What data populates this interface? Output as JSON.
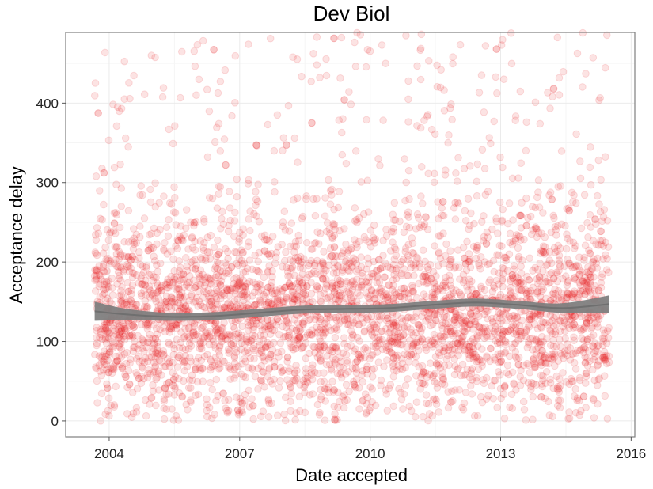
{
  "chart_data": {
    "type": "scatter",
    "title": "Dev Biol",
    "xlabel": "Date accepted",
    "ylabel": "Acceptance delay",
    "x_ticks": [
      "2004",
      "2007",
      "2010",
      "2013",
      "2016"
    ],
    "y_ticks": [
      "0",
      "100",
      "200",
      "300",
      "400"
    ],
    "xlim": [
      "2003-01-01",
      "2016-02-01"
    ],
    "ylim": [
      -20,
      489
    ],
    "grid": true,
    "legend": "none",
    "series": [
      {
        "kind": "points",
        "color": "#e8191b",
        "opacity": 0.12,
        "x_range": [
          "2003-09-01",
          "2015-06-30"
        ],
        "point_count": 4000,
        "y_range": [
          0,
          489
        ],
        "y_typical": [
          50,
          220
        ]
      },
      {
        "kind": "smooth",
        "color": "#7f7f7f",
        "x": [
          "2003-09-01",
          "2004-06-01",
          "2005-06-01",
          "2006-06-01",
          "2007-06-01",
          "2008-06-01",
          "2009-06-01",
          "2010-06-01",
          "2011-06-01",
          "2012-06-01",
          "2013-06-01",
          "2014-06-01",
          "2015-06-30"
        ],
        "y": [
          138,
          134,
          131,
          132,
          136,
          140,
          141,
          142,
          146,
          149,
          146,
          142,
          147
        ],
        "ci_halfwidth": [
          12,
          7,
          5,
          5,
          5,
          5,
          5,
          5,
          5,
          5,
          5,
          6,
          11
        ]
      }
    ]
  }
}
